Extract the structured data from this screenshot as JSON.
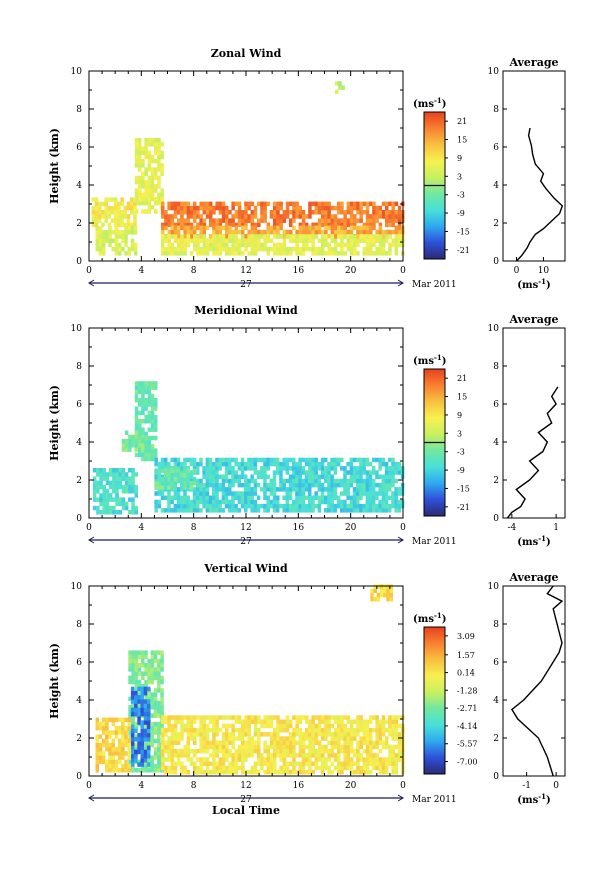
{
  "figure": {
    "date_label": "Mar 2011",
    "day_label": "27",
    "average_title": "Average",
    "unit_label": "(ms",
    "unit_exp": "-1",
    "height_label": "Height (km)",
    "time_label": "Local Time",
    "colors": {
      "colormap": [
        "#2a2a72",
        "#2f50d8",
        "#2fa8f0",
        "#49e0d8",
        "#70e8a0",
        "#c8f060",
        "#f8f050",
        "#f8c040",
        "#f88030",
        "#e84020"
      ]
    }
  },
  "chart_data": [
    {
      "type": "heatmap",
      "title": "Zonal Wind",
      "ylabel": "Height (km)",
      "x_ticks": [
        "0",
        "4",
        "8",
        "12",
        "16",
        "20",
        "0"
      ],
      "y_ticks": [
        "0",
        "2",
        "4",
        "6",
        "8",
        "10"
      ],
      "xlim": [
        0,
        24
      ],
      "ylim": [
        0,
        10
      ],
      "colorbar": {
        "ticks": [
          "21",
          "15",
          "9",
          "3",
          "-3",
          "-9",
          "-15",
          "-21"
        ],
        "range": [
          -24,
          24
        ],
        "zero_line": 0
      },
      "regions": [
        {
          "x": [
            18.8,
            19.5
          ],
          "y": [
            8.8,
            9.4
          ],
          "value": 2
        },
        {
          "x": [
            3.5,
            5.5
          ],
          "y": [
            2.5,
            6.3
          ],
          "value": 6
        },
        {
          "x": [
            0.2,
            3.5
          ],
          "y": [
            1.8,
            3.2
          ],
          "value": 8
        },
        {
          "x": [
            0.5,
            3.5
          ],
          "y": [
            0.3,
            1.8
          ],
          "value": 5
        },
        {
          "x": [
            5.5,
            24
          ],
          "y": [
            1.8,
            3
          ],
          "value": 19
        },
        {
          "x": [
            5.5,
            24
          ],
          "y": [
            1.2,
            1.8
          ],
          "value": 15
        },
        {
          "x": [
            5.5,
            24
          ],
          "y": [
            0.3,
            1.2
          ],
          "value": 6
        }
      ],
      "profile": {
        "xlim": [
          -5,
          18
        ],
        "x_ticks": [
          "0",
          "10"
        ],
        "tick_values": [
          0,
          10
        ],
        "xlabel_exp": "-1",
        "points": [
          [
            0,
            0
          ],
          [
            2,
            0.3
          ],
          [
            4,
            0.7
          ],
          [
            5,
            1
          ],
          [
            7,
            1.4
          ],
          [
            10,
            1.7
          ],
          [
            13,
            2.1
          ],
          [
            16,
            2.5
          ],
          [
            17,
            2.9
          ],
          [
            14,
            3.3
          ],
          [
            11,
            3.8
          ],
          [
            9,
            4.2
          ],
          [
            10,
            4.6
          ],
          [
            7,
            5.1
          ],
          [
            6,
            5.6
          ],
          [
            5.5,
            6.1
          ],
          [
            4.5,
            6.6
          ],
          [
            5,
            7
          ]
        ]
      }
    },
    {
      "type": "heatmap",
      "title": "Meridional Wind",
      "ylabel": "Height (km)",
      "x_ticks": [
        "0",
        "4",
        "8",
        "12",
        "16",
        "20",
        "0"
      ],
      "y_ticks": [
        "0",
        "2",
        "4",
        "6",
        "8",
        "10"
      ],
      "xlim": [
        0,
        24
      ],
      "ylim": [
        0,
        10
      ],
      "colorbar": {
        "ticks": [
          "21",
          "15",
          "9",
          "3",
          "-3",
          "-9",
          "-15",
          "-21"
        ],
        "range": [
          -24,
          24
        ],
        "zero_line": 0
      },
      "regions": [
        {
          "x": [
            3.5,
            5
          ],
          "y": [
            3,
            7
          ],
          "value": -4
        },
        {
          "x": [
            2.5,
            4
          ],
          "y": [
            3.5,
            4.5
          ],
          "value": -2
        },
        {
          "x": [
            0.3,
            3.5
          ],
          "y": [
            0.2,
            2.5
          ],
          "value": -7
        },
        {
          "x": [
            5,
            24
          ],
          "y": [
            0.3,
            3
          ],
          "value": -8
        },
        {
          "x": [
            5,
            8
          ],
          "y": [
            1.5,
            2.5
          ],
          "value": -4
        }
      ],
      "profile": {
        "xlim": [
          -5,
          2
        ],
        "x_ticks": [
          "-4",
          "1"
        ],
        "tick_values": [
          -4,
          1
        ],
        "xlabel_exp": "-1",
        "points": [
          [
            -4.5,
            0
          ],
          [
            -4,
            0.3
          ],
          [
            -3,
            0.6
          ],
          [
            -2.5,
            1
          ],
          [
            -3.5,
            1.5
          ],
          [
            -2,
            2
          ],
          [
            -1,
            2.5
          ],
          [
            -2,
            3
          ],
          [
            -0.5,
            3.5
          ],
          [
            0,
            4
          ],
          [
            -1,
            4.5
          ],
          [
            0.5,
            5
          ],
          [
            0,
            5.5
          ],
          [
            1,
            6
          ],
          [
            0.5,
            6.4
          ],
          [
            1.2,
            6.9
          ]
        ]
      }
    },
    {
      "type": "heatmap",
      "title": "Vertical Wind",
      "ylabel": "Height (km)",
      "xlabel": "Local Time",
      "x_ticks": [
        "0",
        "4",
        "8",
        "12",
        "16",
        "20",
        "0"
      ],
      "y_ticks": [
        "0",
        "2",
        "4",
        "6",
        "8",
        "10"
      ],
      "xlim": [
        0,
        24
      ],
      "ylim": [
        0,
        10
      ],
      "colorbar": {
        "ticks": [
          "3.09",
          "1.57",
          "0.14",
          "-1.28",
          "-2.71",
          "-4.14",
          "-5.57",
          "-7.00"
        ],
        "range": [
          -8,
          3.8
        ],
        "zero_line": null
      },
      "regions": [
        {
          "x": [
            21.5,
            23
          ],
          "y": [
            9.2,
            10
          ],
          "value": 0.5
        },
        {
          "x": [
            3,
            5.5
          ],
          "y": [
            0.2,
            6.5
          ],
          "value": -2.5
        },
        {
          "x": [
            3.2,
            4.5
          ],
          "y": [
            0.5,
            4.5
          ],
          "value": -6
        },
        {
          "x": [
            0.5,
            3
          ],
          "y": [
            0.2,
            3
          ],
          "value": 0.5
        },
        {
          "x": [
            5.5,
            24
          ],
          "y": [
            0.1,
            3
          ],
          "value": 0
        }
      ],
      "profile": {
        "xlim": [
          -1.8,
          0.3
        ],
        "x_ticks": [
          "-1",
          "0"
        ],
        "tick_values": [
          -1,
          0
        ],
        "xlabel_exp": "-1",
        "points": [
          [
            -0.1,
            0
          ],
          [
            -0.3,
            1
          ],
          [
            -0.6,
            2
          ],
          [
            -1.3,
            3
          ],
          [
            -1.5,
            3.5
          ],
          [
            -1.1,
            4
          ],
          [
            -0.8,
            4.5
          ],
          [
            -0.5,
            5
          ],
          [
            -0.3,
            5.5
          ],
          [
            -0.1,
            6
          ],
          [
            0.1,
            6.5
          ],
          [
            0.2,
            7
          ],
          [
            -0.1,
            8.8
          ],
          [
            0.2,
            9.2
          ],
          [
            -0.3,
            9.6
          ],
          [
            -0.1,
            10
          ]
        ]
      }
    }
  ]
}
